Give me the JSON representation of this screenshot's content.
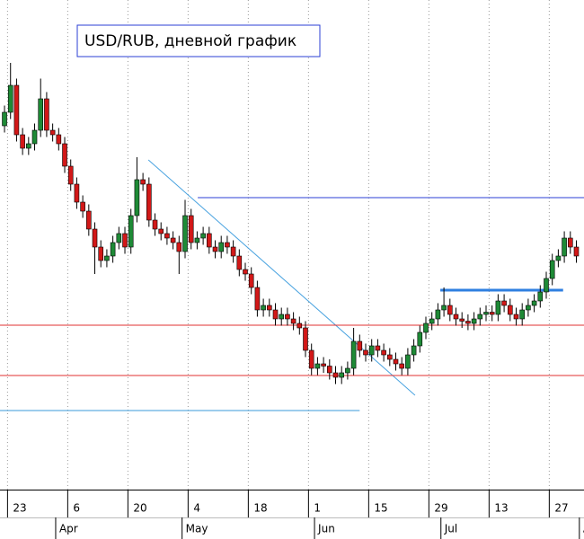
{
  "chart_data": {
    "type": "candlestick",
    "title": "USD/RUB, дневной график",
    "categories": [
      null,
      "23",
      null,
      null,
      null,
      null,
      null,
      null,
      null,
      null,
      null,
      "6",
      null,
      null,
      null,
      null,
      null,
      null,
      null,
      null,
      null,
      "20",
      null,
      null,
      null,
      null,
      null,
      null,
      null,
      null,
      null,
      "4",
      null,
      null,
      null,
      null,
      null,
      null,
      null,
      null,
      null,
      "18",
      null,
      null,
      null,
      null,
      null,
      null,
      null,
      null,
      null,
      "1",
      null,
      null,
      null,
      null,
      null,
      null,
      null,
      null,
      null,
      "15",
      null,
      null,
      null,
      null,
      null,
      null,
      null,
      null,
      null,
      "29",
      null,
      null,
      null,
      null,
      null,
      null,
      null,
      null,
      null,
      "13",
      null,
      null,
      null,
      null,
      null,
      null,
      null,
      null,
      null,
      "27",
      null,
      null,
      null,
      null
    ],
    "months": [
      null,
      null,
      null,
      null,
      null,
      null,
      null,
      null,
      null,
      "Apr",
      null,
      null,
      null,
      null,
      null,
      null,
      null,
      null,
      null,
      null,
      null,
      null,
      null,
      null,
      null,
      null,
      null,
      null,
      null,
      null,
      "May",
      null,
      null,
      null,
      null,
      null,
      null,
      null,
      null,
      null,
      null,
      null,
      null,
      null,
      null,
      null,
      null,
      null,
      null,
      null,
      null,
      null,
      "Jun",
      null,
      null,
      null,
      null,
      null,
      null,
      null,
      null,
      null,
      null,
      null,
      null,
      null,
      null,
      null,
      null,
      null,
      null,
      null,
      null,
      "Jul",
      null,
      null,
      null,
      null,
      null,
      null,
      null,
      null,
      null,
      null,
      null,
      null,
      null,
      null,
      null,
      null,
      null,
      null,
      null,
      null,
      null,
      null,
      "A"
    ],
    "open": [
      59.4,
      60.0,
      61.2,
      59.0,
      58.4,
      58.6,
      59.2,
      60.6,
      59.2,
      59.0,
      58.6,
      57.6,
      56.8,
      56.0,
      55.6,
      54.8,
      54.0,
      53.4,
      53.6,
      54.2,
      54.6,
      54.0,
      55.4,
      57.0,
      56.8,
      55.2,
      54.8,
      54.6,
      54.4,
      54.2,
      53.8,
      55.4,
      54.2,
      54.4,
      54.6,
      54.0,
      53.8,
      54.2,
      54.0,
      53.6,
      53.0,
      52.8,
      52.2,
      51.2,
      51.4,
      51.2,
      50.8,
      51.0,
      50.8,
      50.6,
      50.4,
      49.4,
      48.6,
      48.8,
      48.7,
      48.4,
      48.2,
      48.4,
      48.6,
      49.8,
      49.4,
      49.2,
      49.6,
      49.4,
      49.2,
      49.0,
      48.8,
      48.6,
      49.2,
      49.6,
      50.2,
      50.6,
      50.8,
      51.2,
      51.4,
      51.0,
      50.8,
      50.7,
      50.6,
      50.8,
      51.0,
      51.1,
      51.0,
      51.6,
      51.4,
      51.0,
      50.8,
      51.2,
      51.4,
      51.6,
      52.0,
      52.6,
      53.4,
      53.6,
      54.4,
      54.0
    ],
    "high": [
      60.3,
      62.2,
      61.5,
      59.3,
      58.9,
      59.5,
      61.5,
      60.9,
      59.5,
      59.3,
      58.9,
      57.9,
      57.1,
      56.3,
      55.9,
      55.1,
      54.3,
      53.9,
      54.5,
      54.9,
      54.9,
      55.7,
      58.0,
      57.3,
      57.1,
      55.5,
      55.1,
      54.9,
      54.7,
      54.5,
      56.1,
      55.7,
      54.7,
      54.9,
      54.9,
      54.3,
      54.5,
      54.5,
      54.3,
      53.9,
      53.3,
      53.1,
      52.5,
      51.7,
      51.7,
      51.5,
      51.3,
      51.3,
      51.1,
      50.9,
      50.7,
      49.7,
      49.1,
      49.1,
      49.0,
      48.7,
      48.7,
      48.9,
      50.4,
      50.1,
      49.7,
      49.9,
      49.9,
      49.7,
      49.5,
      49.3,
      49.1,
      49.5,
      49.9,
      50.5,
      50.9,
      51.1,
      51.5,
      52.2,
      51.7,
      51.3,
      51.1,
      51.0,
      51.1,
      51.3,
      51.4,
      51.4,
      51.9,
      51.9,
      51.7,
      51.3,
      51.5,
      51.7,
      51.9,
      52.3,
      52.9,
      53.7,
      53.9,
      54.7,
      54.7,
      54.3
    ],
    "low": [
      59.1,
      59.7,
      58.7,
      58.1,
      58.1,
      58.3,
      58.9,
      58.9,
      58.7,
      58.3,
      57.3,
      56.5,
      55.7,
      55.3,
      54.5,
      52.8,
      53.1,
      53.1,
      53.3,
      53.9,
      53.7,
      53.7,
      55.1,
      56.5,
      54.9,
      54.5,
      54.3,
      54.1,
      53.9,
      52.8,
      53.5,
      53.9,
      53.9,
      54.1,
      53.7,
      53.5,
      53.5,
      53.7,
      53.3,
      52.7,
      52.5,
      51.9,
      50.9,
      50.9,
      50.9,
      50.5,
      50.5,
      50.5,
      50.3,
      50.1,
      49.1,
      48.3,
      48.3,
      48.4,
      48.1,
      47.9,
      47.9,
      48.1,
      48.3,
      49.1,
      48.9,
      48.9,
      49.1,
      48.9,
      48.7,
      48.5,
      48.3,
      48.3,
      48.9,
      49.3,
      49.9,
      50.3,
      50.5,
      50.9,
      50.7,
      50.5,
      50.4,
      50.3,
      50.3,
      50.5,
      50.7,
      50.7,
      50.7,
      51.1,
      50.7,
      50.5,
      50.5,
      50.9,
      51.1,
      51.3,
      51.7,
      52.3,
      53.1,
      53.3,
      53.7,
      53.3
    ],
    "close": [
      60.0,
      61.2,
      59.0,
      58.4,
      58.6,
      59.2,
      60.6,
      59.2,
      59.0,
      58.6,
      57.6,
      56.8,
      56.0,
      55.6,
      54.8,
      54.0,
      53.4,
      53.6,
      54.2,
      54.6,
      54.0,
      55.4,
      57.0,
      56.8,
      55.2,
      54.8,
      54.6,
      54.4,
      54.2,
      53.8,
      55.4,
      54.2,
      54.4,
      54.6,
      54.0,
      53.8,
      54.2,
      54.0,
      53.6,
      53.0,
      52.8,
      52.2,
      51.2,
      51.4,
      51.2,
      50.8,
      51.0,
      50.8,
      50.6,
      50.4,
      49.4,
      48.6,
      48.8,
      48.7,
      48.4,
      48.2,
      48.4,
      48.6,
      49.8,
      49.4,
      49.2,
      49.6,
      49.4,
      49.2,
      49.0,
      48.8,
      48.6,
      49.2,
      49.6,
      50.2,
      50.6,
      50.8,
      51.2,
      51.4,
      51.0,
      50.8,
      50.7,
      50.6,
      50.8,
      51.0,
      51.1,
      51.0,
      51.6,
      51.4,
      51.0,
      50.8,
      51.2,
      51.4,
      51.6,
      52.0,
      52.6,
      53.4,
      53.6,
      54.4,
      54.0,
      53.6
    ],
    "up_color": "#1e8a36",
    "down_color": "#d21818",
    "xlim": [
      -0.75,
      96.27
    ],
    "ylim": [
      43.2,
      65
    ],
    "grid": true,
    "lines": [
      {
        "x": [
          23.9,
          68.2
        ],
        "y": [
          57.88,
          47.4
        ],
        "color": "#4aa3e0",
        "width": 1
      },
      {
        "x": [
          32.1,
          96.27
        ],
        "y": [
          56.2,
          56.2
        ],
        "color": "#2b3fd6",
        "width": 1
      },
      {
        "x": [
          -0.75,
          96.27
        ],
        "y": [
          50.52,
          50.52
        ],
        "color": "#e03030",
        "width": 1
      },
      {
        "x": [
          -0.75,
          96.27
        ],
        "y": [
          48.28,
          48.28
        ],
        "color": "#e03030",
        "width": 1
      },
      {
        "x": [
          -0.75,
          59.0
        ],
        "y": [
          46.72,
          46.72
        ],
        "color": "#3a9ad8",
        "width": 1
      },
      {
        "x": [
          72.4,
          92.8
        ],
        "y": [
          52.08,
          52.08
        ],
        "color": "#2f7fe0",
        "width": 3
      }
    ]
  }
}
